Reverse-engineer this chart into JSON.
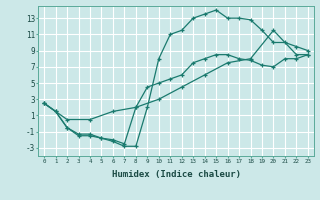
{
  "title": "",
  "xlabel": "Humidex (Indice chaleur)",
  "bg_color": "#cce8e8",
  "grid_color": "#ffffff",
  "line_color": "#1a7a6e",
  "xlim": [
    -0.5,
    23.5
  ],
  "ylim": [
    -4,
    14.5
  ],
  "xticks": [
    0,
    1,
    2,
    3,
    4,
    5,
    6,
    7,
    8,
    9,
    10,
    11,
    12,
    13,
    14,
    15,
    16,
    17,
    18,
    19,
    20,
    21,
    22,
    23
  ],
  "yticks": [
    -3,
    -1,
    1,
    3,
    5,
    7,
    9,
    11,
    13
  ],
  "line1_x": [
    0,
    1,
    2,
    3,
    4,
    5,
    6,
    7,
    8,
    9,
    10,
    11,
    12,
    13,
    14,
    15,
    16,
    17,
    18,
    19,
    20,
    21,
    22,
    23
  ],
  "line1_y": [
    2.5,
    1.5,
    -0.5,
    -1.5,
    -1.5,
    -1.8,
    -2.2,
    -2.8,
    -2.8,
    2.0,
    8.0,
    11.0,
    11.5,
    13.0,
    13.5,
    14.0,
    13.0,
    13.0,
    12.8,
    11.5,
    10.0,
    10.0,
    9.5,
    9.0
  ],
  "line2_x": [
    0,
    1,
    2,
    3,
    4,
    5,
    6,
    7,
    8,
    9,
    10,
    11,
    12,
    13,
    14,
    15,
    16,
    17,
    18,
    19,
    20,
    21,
    22,
    23
  ],
  "line2_y": [
    2.5,
    1.5,
    -0.5,
    -1.3,
    -1.3,
    -1.8,
    -2.0,
    -2.5,
    2.0,
    4.5,
    5.0,
    5.5,
    6.0,
    7.5,
    8.0,
    8.5,
    8.5,
    8.0,
    7.8,
    7.2,
    7.0,
    8.0,
    8.0,
    8.5
  ],
  "line3_x": [
    0,
    2,
    4,
    6,
    8,
    10,
    12,
    14,
    16,
    18,
    20,
    22,
    23
  ],
  "line3_y": [
    2.5,
    0.5,
    0.5,
    1.5,
    2.0,
    3.0,
    4.5,
    6.0,
    7.5,
    8.0,
    11.5,
    8.5,
    8.5
  ]
}
